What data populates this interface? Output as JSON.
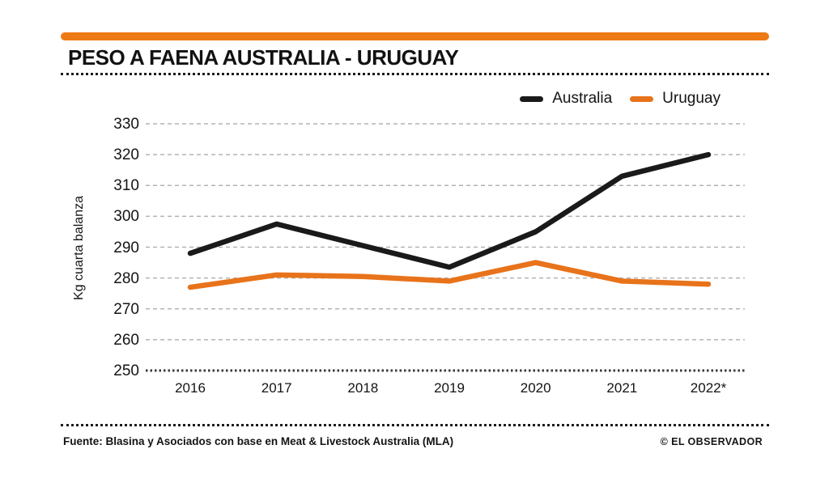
{
  "page": {
    "accent_color": "#ED7A15",
    "footer": {
      "source": "Fuente: Blasina y Asociados con base en Meat & Livestock Australia (MLA)",
      "credit": "© EL OBSERVADOR"
    }
  },
  "chart_data": {
    "type": "line",
    "title": "PESO A FAENA AUSTRALIA - URUGUAY",
    "xlabel": "",
    "ylabel": "Kg cuarta balanza",
    "categories": [
      "2016",
      "2017",
      "2018",
      "2019",
      "2020",
      "2021",
      "2022*"
    ],
    "series": [
      {
        "name": "Australia",
        "color": "#1A1A1A",
        "values": [
          288,
          297.5,
          290.5,
          283.5,
          295,
          313,
          320
        ]
      },
      {
        "name": "Uruguay",
        "color": "#E8731A",
        "values": [
          277,
          281,
          280.5,
          279,
          285,
          279,
          278
        ]
      }
    ],
    "ylim": [
      250,
      330
    ],
    "yticks": [
      250,
      260,
      270,
      280,
      290,
      300,
      310,
      320,
      330
    ],
    "grid": "horizontal-dashed",
    "gridline_color": "#B3B3B3",
    "axis_color": "#3A3A3A",
    "legend_position": "top-right"
  }
}
